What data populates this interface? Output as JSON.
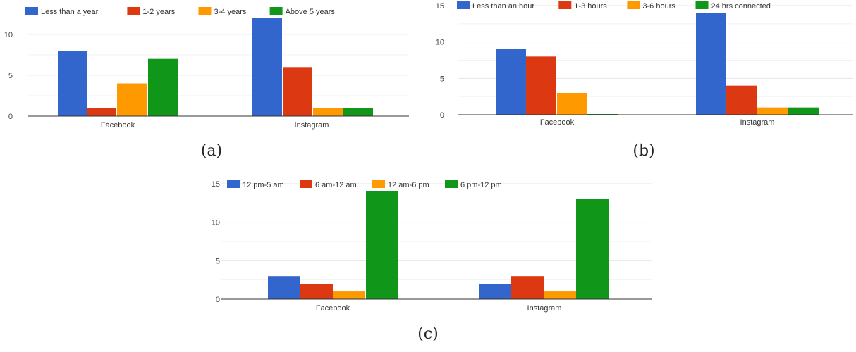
{
  "colors": {
    "blue": "#3366cc",
    "red": "#dc3912",
    "orange": "#ff9900",
    "green": "#109618",
    "grid": "#e6e6e6",
    "axis": "#333333"
  },
  "chart_data": [
    {
      "type": "bar",
      "caption": "(a)",
      "categories": [
        "Facebook",
        "Instagram"
      ],
      "yticks": [
        "0",
        "5",
        "10"
      ],
      "ylim": [
        0,
        13
      ],
      "grid": true,
      "legend_position": "top",
      "series": [
        {
          "name": "Less than a year",
          "color": "#3366cc",
          "values": [
            8,
            12
          ]
        },
        {
          "name": "1-2 years",
          "color": "#dc3912",
          "values": [
            1,
            6
          ]
        },
        {
          "name": "3-4 years",
          "color": "#ff9900",
          "values": [
            4,
            1
          ]
        },
        {
          "name": "Above 5 years",
          "color": "#109618",
          "values": [
            7,
            1
          ]
        }
      ]
    },
    {
      "type": "bar",
      "caption": "(b)",
      "categories": [
        "Facebook",
        "Instagram"
      ],
      "yticks": [
        "0",
        "5",
        "10",
        "15"
      ],
      "ylim": [
        0,
        15
      ],
      "grid": true,
      "legend_position": "top",
      "series": [
        {
          "name": "Less than an hour",
          "color": "#3366cc",
          "values": [
            9,
            14
          ]
        },
        {
          "name": "1-3 hours",
          "color": "#dc3912",
          "values": [
            8,
            4
          ]
        },
        {
          "name": "3-6 hours",
          "color": "#ff9900",
          "values": [
            3,
            1
          ]
        },
        {
          "name": "24 hrs connected",
          "color": "#109618",
          "values": [
            0,
            1
          ]
        }
      ]
    },
    {
      "type": "bar",
      "caption": "(c)",
      "categories": [
        "Facebook",
        "Instagram"
      ],
      "yticks": [
        "0",
        "5",
        "10",
        "15"
      ],
      "ylim": [
        0,
        15
      ],
      "grid": true,
      "legend_position": "top",
      "series": [
        {
          "name": "12 pm-5 am",
          "color": "#3366cc",
          "values": [
            3,
            2
          ]
        },
        {
          "name": "6 am-12 am",
          "color": "#dc3912",
          "values": [
            2,
            3
          ]
        },
        {
          "name": "12 am-6 pm",
          "color": "#ff9900",
          "values": [
            1,
            1
          ]
        },
        {
          "name": "6 pm-12 pm",
          "color": "#109618",
          "values": [
            14,
            13
          ]
        }
      ]
    }
  ]
}
